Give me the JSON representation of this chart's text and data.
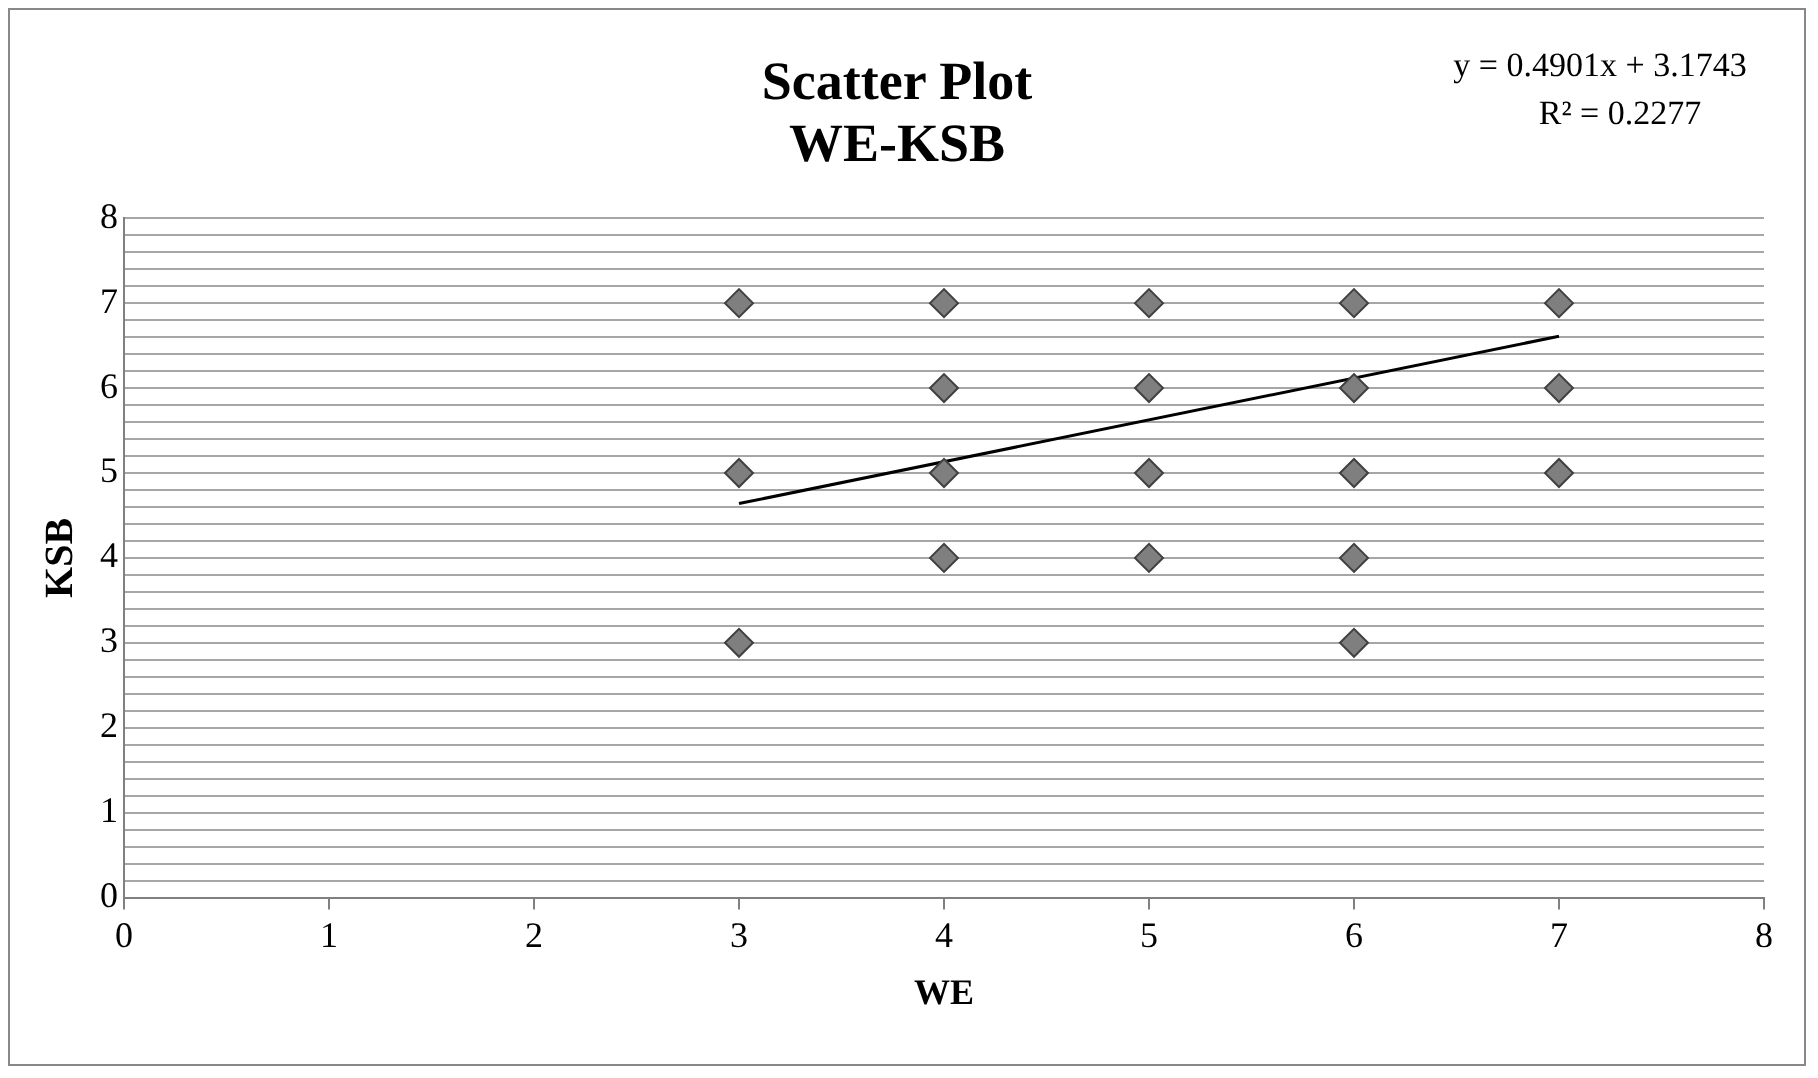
{
  "chart_data": {
    "type": "scatter",
    "title": [
      "Scatter Plot",
      "WE-KSB"
    ],
    "xlabel": "WE",
    "ylabel": "KSB",
    "annotations": [
      "y = 0.4901x + 3.1743",
      "R² = 0.2277"
    ],
    "xlim": [
      0,
      8
    ],
    "xticks": [
      0,
      1,
      2,
      3,
      4,
      5,
      6,
      7,
      8
    ],
    "ylim": [
      0,
      8
    ],
    "yticks": [
      0,
      {
        "value": 0.2,
        "label": null
      },
      {
        "value": 0.4,
        "label": null
      },
      {
        "value": 0.6,
        "label": null
      },
      {
        "value": 0.8,
        "label": null
      },
      1,
      {
        "value": 1.2,
        "label": null
      },
      {
        "value": 1.4,
        "label": null
      },
      {
        "value": 1.6,
        "label": null
      },
      {
        "value": 1.8,
        "label": null
      },
      2,
      {
        "value": 2.2,
        "label": null
      },
      {
        "value": 2.4,
        "label": null
      },
      {
        "value": 2.6,
        "label": null
      },
      {
        "value": 2.8,
        "label": null
      },
      3,
      {
        "value": 3.2,
        "label": null
      },
      {
        "value": 3.4,
        "label": null
      },
      {
        "value": 3.6,
        "label": null
      },
      {
        "value": 3.8,
        "label": null
      },
      4,
      {
        "value": 4.2,
        "label": null
      },
      {
        "value": 4.4,
        "label": null
      },
      {
        "value": 4.6,
        "label": null
      },
      {
        "value": 4.8,
        "label": null
      },
      5,
      {
        "value": 5.2,
        "label": null
      },
      {
        "value": 5.4,
        "label": null
      },
      {
        "value": 5.6,
        "label": null
      },
      {
        "value": 5.8,
        "label": null
      },
      6,
      {
        "value": 6.2,
        "label": null
      },
      {
        "value": 6.4,
        "label": null
      },
      {
        "value": 6.6,
        "label": null
      },
      {
        "value": 6.8,
        "label": null
      },
      7,
      {
        "value": 7.2,
        "label": null
      },
      {
        "value": 7.4,
        "label": null
      },
      {
        "value": 7.6,
        "label": null
      },
      {
        "value": 7.8,
        "label": null
      },
      8
    ],
    "grid": "y",
    "legend": false,
    "series": [
      {
        "color": "#7f7f7f",
        "marker": "diamond",
        "x": [
          3,
          3,
          3,
          4,
          4,
          4,
          4,
          5,
          5,
          5,
          5,
          6,
          6,
          6,
          6,
          6,
          7,
          7,
          7
        ],
        "values": [
          7,
          5,
          3,
          7,
          6,
          5,
          4,
          7,
          6,
          5,
          4,
          7,
          6,
          5,
          4,
          3,
          7,
          6,
          5
        ]
      },
      {
        "type": "line",
        "marker": "none",
        "color": "#000000",
        "x": [
          3,
          7
        ],
        "values": [
          4.64,
          6.61
        ]
      }
    ]
  }
}
